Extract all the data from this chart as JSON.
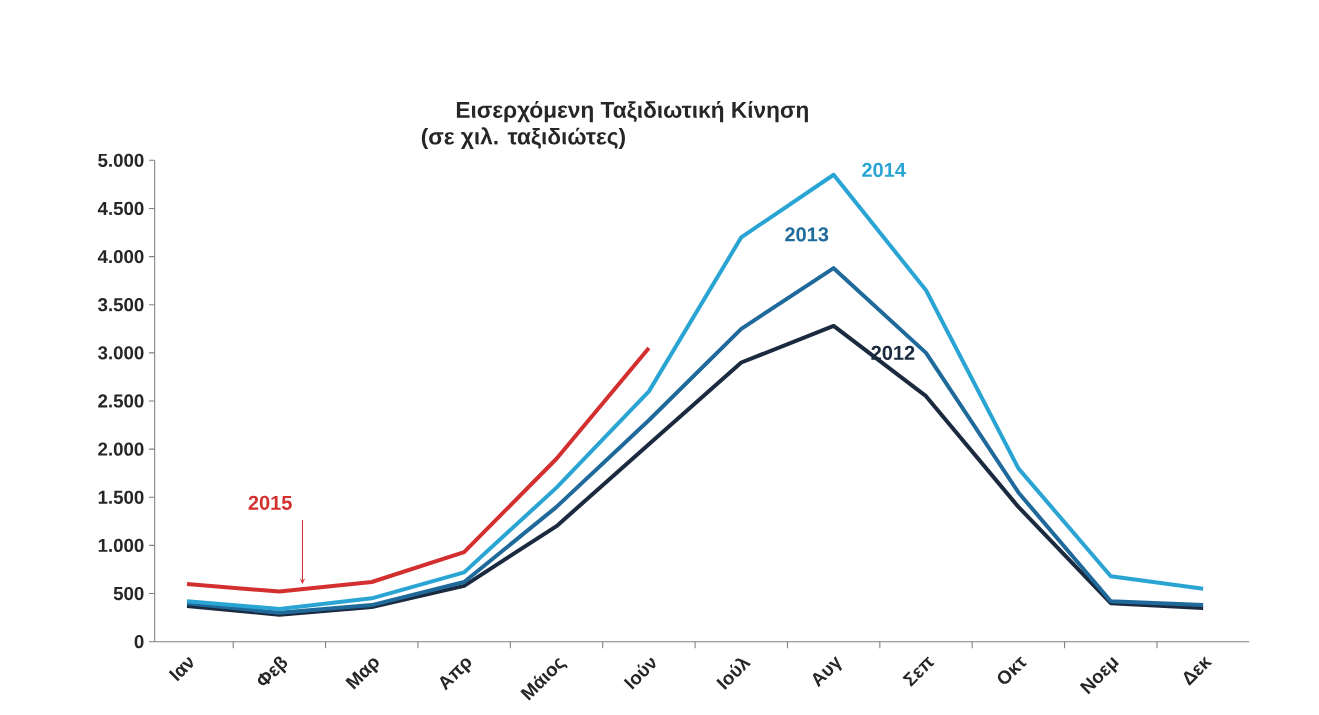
{
  "chart_data": {
    "type": "line",
    "title": "Εισερχόμενη Ταξιδιωτική Κίνηση",
    "subtitle": "(σε χιλ. ταξιδιώτες)",
    "categories": [
      "Ιαν",
      "Φεβ",
      "Μαρ",
      "Απρ",
      "Μάιος",
      "Ιούν",
      "Ιούλ",
      "Αυγ",
      "Σεπ",
      "Οκτ",
      "Νοεμ",
      "Δεκ"
    ],
    "series": [
      {
        "name": "2012",
        "color": "#1b2a3f",
        "values": [
          370,
          280,
          360,
          580,
          1200,
          2050,
          2900,
          3280,
          2550,
          1400,
          400,
          350
        ]
      },
      {
        "name": "2013",
        "color": "#1f6a9a",
        "values": [
          400,
          300,
          380,
          620,
          1400,
          2300,
          3250,
          3880,
          3000,
          1550,
          420,
          380
        ]
      },
      {
        "name": "2014",
        "color": "#2aa5d3",
        "values": [
          420,
          340,
          450,
          720,
          1600,
          2600,
          4200,
          4850,
          3650,
          1800,
          680,
          550
        ]
      },
      {
        "name": "2015",
        "color": "#d32f2f",
        "values": [
          600,
          520,
          620,
          930,
          1900,
          3050,
          null,
          null,
          null,
          null,
          null,
          null
        ]
      }
    ],
    "ylim": [
      0,
      5000
    ],
    "yticks": [
      {
        "value": 0,
        "label": "0"
      },
      {
        "value": 500,
        "label": "500"
      },
      {
        "value": 1000,
        "label": "1.000"
      },
      {
        "value": 1500,
        "label": "1.500"
      },
      {
        "value": 2000,
        "label": "2.000"
      },
      {
        "value": 2500,
        "label": "2.500"
      },
      {
        "value": 3000,
        "label": "3.000"
      },
      {
        "value": 3500,
        "label": "3.500"
      },
      {
        "value": 4000,
        "label": "4.000"
      },
      {
        "value": 4500,
        "label": "4.500"
      },
      {
        "value": 5000,
        "label": "5.000"
      }
    ],
    "grid": false,
    "legend": false,
    "marker": "none",
    "line_style": "solid"
  }
}
